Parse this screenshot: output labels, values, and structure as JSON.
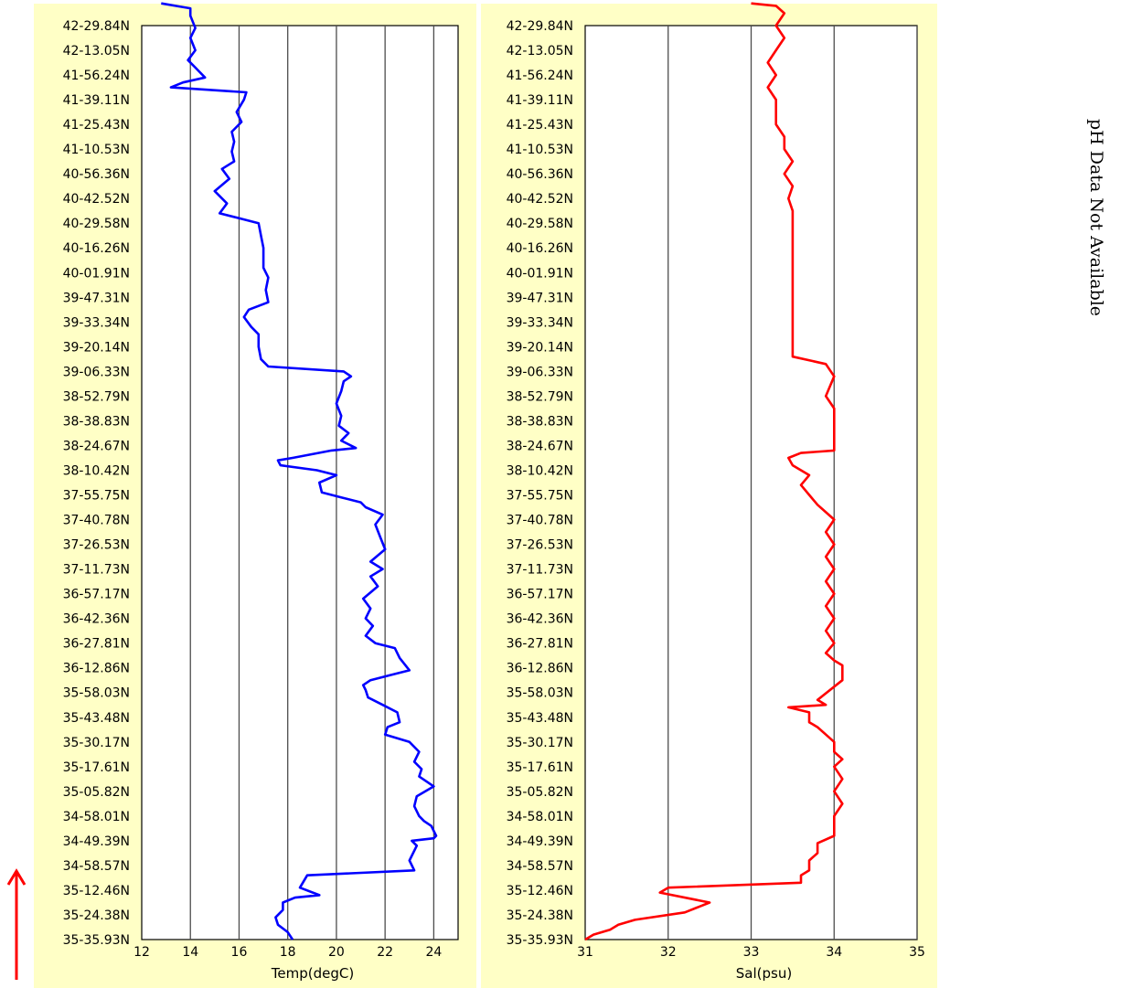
{
  "side_note": "pH Data Not Available",
  "colors": {
    "panel_bg": "#ffffc6",
    "temp_line": "#0000ff",
    "sal_line": "#ff0000",
    "arrow": "#ff0000",
    "grid": "#4d4d4d"
  },
  "direction_arrow_icon": "up-arrow-icon",
  "chart_data": [
    {
      "type": "line",
      "orientation": "vertical-profile",
      "xlabel": "Temp(degC)",
      "ylabel": "",
      "xlim": [
        12,
        25
      ],
      "xticks": [
        "12",
        "14",
        "16",
        "18",
        "20",
        "22",
        "24"
      ],
      "grid": "vertical",
      "categories": [
        "35-35.93N",
        "35-24.38N",
        "35-12.46N",
        "34-58.57N",
        "34-49.39N",
        "34-58.01N",
        "35-05.82N",
        "35-17.61N",
        "35-30.17N",
        "35-43.48N",
        "35-58.03N",
        "36-12.86N",
        "36-27.81N",
        "36-42.36N",
        "36-57.17N",
        "37-11.73N",
        "37-26.53N",
        "37-40.78N",
        "37-55.75N",
        "38-10.42N",
        "38-24.67N",
        "38-38.83N",
        "38-52.79N",
        "39-06.33N",
        "39-20.14N",
        "39-33.34N",
        "39-47.31N",
        "40-01.91N",
        "40-16.26N",
        "40-29.58N",
        "40-42.52N",
        "40-56.36N",
        "41-10.53N",
        "41-25.43N",
        "41-39.11N",
        "41-56.24N",
        "42-13.05N",
        "42-29.84N"
      ],
      "series": [
        {
          "points": [
            [
              18.2,
              0
            ],
            [
              18.0,
              0.3
            ],
            [
              17.6,
              0.6
            ],
            [
              17.5,
              0.9
            ],
            [
              17.8,
              1.2
            ],
            [
              17.8,
              1.5
            ],
            [
              18.3,
              1.7
            ],
            [
              19.3,
              1.8
            ],
            [
              18.5,
              2.1
            ],
            [
              18.8,
              2.6
            ],
            [
              23.2,
              2.8
            ],
            [
              23.0,
              3.2
            ],
            [
              23.3,
              3.8
            ],
            [
              23.1,
              4.0
            ],
            [
              24.0,
              4.1
            ],
            [
              24.1,
              4.2
            ],
            [
              23.9,
              4.6
            ],
            [
              23.6,
              4.8
            ],
            [
              23.4,
              5.0
            ],
            [
              23.2,
              5.4
            ],
            [
              23.3,
              5.8
            ],
            [
              24.0,
              6.2
            ],
            [
              23.4,
              6.6
            ],
            [
              23.5,
              6.9
            ],
            [
              23.2,
              7.2
            ],
            [
              23.4,
              7.6
            ],
            [
              23.0,
              8.0
            ],
            [
              22.0,
              8.3
            ],
            [
              22.1,
              8.6
            ],
            [
              22.6,
              8.8
            ],
            [
              22.5,
              9.2
            ],
            [
              21.9,
              9.5
            ],
            [
              21.3,
              9.8
            ],
            [
              21.2,
              10.1
            ],
            [
              21.1,
              10.3
            ],
            [
              21.4,
              10.5
            ],
            [
              22.2,
              10.7
            ],
            [
              23.0,
              10.9
            ],
            [
              22.6,
              11.4
            ],
            [
              22.4,
              11.8
            ],
            [
              21.6,
              12.0
            ],
            [
              21.2,
              12.3
            ],
            [
              21.5,
              12.7
            ],
            [
              21.2,
              13.0
            ],
            [
              21.4,
              13.4
            ],
            [
              21.1,
              13.8
            ],
            [
              21.7,
              14.3
            ],
            [
              21.4,
              14.7
            ],
            [
              21.9,
              15.0
            ],
            [
              21.4,
              15.3
            ],
            [
              22.0,
              15.8
            ],
            [
              21.8,
              16.3
            ],
            [
              21.6,
              16.8
            ],
            [
              21.9,
              17.2
            ],
            [
              21.2,
              17.5
            ],
            [
              21.0,
              17.7
            ],
            [
              20.2,
              17.9
            ],
            [
              19.4,
              18.1
            ],
            [
              19.3,
              18.5
            ],
            [
              20.0,
              18.8
            ],
            [
              19.2,
              19.0
            ],
            [
              17.7,
              19.2
            ],
            [
              17.6,
              19.4
            ],
            [
              18.2,
              19.5
            ],
            [
              19.8,
              19.8
            ],
            [
              20.8,
              19.9
            ],
            [
              20.2,
              20.2
            ],
            [
              20.5,
              20.5
            ],
            [
              20.1,
              20.8
            ],
            [
              20.2,
              21.2
            ],
            [
              20.0,
              21.7
            ],
            [
              20.2,
              22.2
            ],
            [
              20.3,
              22.6
            ],
            [
              20.6,
              22.8
            ],
            [
              20.3,
              23.0
            ],
            [
              17.2,
              23.2
            ],
            [
              16.9,
              23.5
            ],
            [
              16.8,
              24.0
            ],
            [
              16.8,
              24.5
            ],
            [
              16.5,
              24.8
            ],
            [
              16.2,
              25.2
            ],
            [
              16.4,
              25.5
            ],
            [
              17.2,
              25.8
            ],
            [
              17.1,
              26.3
            ],
            [
              17.2,
              26.8
            ],
            [
              17.0,
              27.2
            ],
            [
              17.0,
              28.0
            ],
            [
              16.9,
              28.5
            ],
            [
              16.8,
              29.0
            ],
            [
              16.0,
              29.2
            ],
            [
              15.2,
              29.4
            ],
            [
              15.5,
              29.8
            ],
            [
              15.0,
              30.3
            ],
            [
              15.6,
              30.8
            ],
            [
              15.3,
              31.2
            ],
            [
              15.8,
              31.5
            ],
            [
              15.7,
              31.9
            ],
            [
              15.8,
              32.3
            ],
            [
              15.7,
              32.7
            ],
            [
              16.1,
              33.1
            ],
            [
              15.9,
              33.5
            ],
            [
              16.2,
              34.0
            ],
            [
              16.3,
              34.3
            ],
            [
              13.2,
              34.5
            ],
            [
              13.7,
              34.7
            ],
            [
              14.6,
              34.9
            ],
            [
              14.2,
              35.3
            ],
            [
              13.9,
              35.6
            ],
            [
              14.2,
              36.0
            ],
            [
              14.0,
              36.5
            ],
            [
              14.2,
              36.9
            ],
            [
              14.0,
              37.4
            ],
            [
              14.0,
              37.7
            ],
            [
              12.8,
              37.9
            ]
          ]
        }
      ]
    },
    {
      "type": "line",
      "orientation": "vertical-profile",
      "xlabel": "Sal(psu)",
      "ylabel": "",
      "xlim": [
        31,
        35
      ],
      "xticks": [
        "31",
        "32",
        "33",
        "34",
        "35"
      ],
      "grid": "vertical",
      "categories": [
        "35-35.93N",
        "35-24.38N",
        "35-12.46N",
        "34-58.57N",
        "34-49.39N",
        "34-58.01N",
        "35-05.82N",
        "35-17.61N",
        "35-30.17N",
        "35-43.48N",
        "35-58.03N",
        "36-12.86N",
        "36-27.81N",
        "36-42.36N",
        "36-57.17N",
        "37-11.73N",
        "37-26.53N",
        "37-40.78N",
        "37-55.75N",
        "38-10.42N",
        "38-24.67N",
        "38-38.83N",
        "38-52.79N",
        "39-06.33N",
        "39-20.14N",
        "39-33.34N",
        "39-47.31N",
        "40-01.91N",
        "40-16.26N",
        "40-29.58N",
        "40-42.52N",
        "40-56.36N",
        "41-10.53N",
        "41-25.43N",
        "41-39.11N",
        "41-56.24N",
        "42-13.05N",
        "42-29.84N"
      ],
      "series": [
        {
          "points": [
            [
              31.0,
              0.0
            ],
            [
              31.1,
              0.2
            ],
            [
              31.3,
              0.4
            ],
            [
              31.4,
              0.6
            ],
            [
              31.6,
              0.8
            ],
            [
              32.2,
              1.1
            ],
            [
              32.5,
              1.5
            ],
            [
              31.9,
              1.9
            ],
            [
              32.0,
              2.1
            ],
            [
              33.6,
              2.3
            ],
            [
              33.6,
              2.6
            ],
            [
              33.7,
              2.8
            ],
            [
              33.7,
              3.2
            ],
            [
              33.8,
              3.5
            ],
            [
              33.8,
              3.9
            ],
            [
              34.0,
              4.2
            ],
            [
              34.0,
              4.5
            ],
            [
              34.0,
              5.0
            ],
            [
              34.1,
              5.5
            ],
            [
              34.0,
              6.0
            ],
            [
              34.1,
              6.5
            ],
            [
              34.0,
              7.0
            ],
            [
              34.1,
              7.3
            ],
            [
              34.0,
              7.6
            ],
            [
              34.0,
              8.0
            ],
            [
              33.9,
              8.3
            ],
            [
              33.8,
              8.6
            ],
            [
              33.7,
              8.8
            ],
            [
              33.7,
              9.2
            ],
            [
              33.45,
              9.4
            ],
            [
              33.9,
              9.5
            ],
            [
              33.8,
              9.7
            ],
            [
              34.1,
              10.5
            ],
            [
              34.1,
              11.1
            ],
            [
              34.0,
              11.3
            ],
            [
              33.9,
              11.6
            ],
            [
              34.0,
              12.0
            ],
            [
              33.9,
              12.5
            ],
            [
              34.0,
              13.0
            ],
            [
              33.9,
              13.5
            ],
            [
              34.0,
              14.0
            ],
            [
              33.9,
              14.5
            ],
            [
              34.0,
              15.0
            ],
            [
              33.9,
              15.5
            ],
            [
              34.0,
              16.0
            ],
            [
              33.9,
              16.5
            ],
            [
              34.0,
              17.0
            ],
            [
              33.9,
              17.3
            ],
            [
              33.8,
              17.6
            ],
            [
              33.7,
              18.0
            ],
            [
              33.6,
              18.4
            ],
            [
              33.7,
              18.8
            ],
            [
              33.5,
              19.2
            ],
            [
              33.45,
              19.5
            ],
            [
              33.6,
              19.7
            ],
            [
              34.0,
              19.8
            ],
            [
              34.0,
              20.5
            ],
            [
              34.0,
              21.5
            ],
            [
              33.9,
              22.0
            ],
            [
              34.0,
              22.8
            ],
            [
              33.9,
              23.3
            ],
            [
              33.5,
              23.6
            ],
            [
              33.5,
              24.5
            ],
            [
              33.5,
              25.5
            ],
            [
              33.5,
              26.5
            ],
            [
              33.5,
              27.5
            ],
            [
              33.5,
              28.5
            ],
            [
              33.5,
              29.5
            ],
            [
              33.45,
              30.0
            ],
            [
              33.5,
              30.5
            ],
            [
              33.4,
              31.0
            ],
            [
              33.5,
              31.5
            ],
            [
              33.4,
              32.0
            ],
            [
              33.4,
              32.5
            ],
            [
              33.3,
              33.0
            ],
            [
              33.3,
              33.5
            ],
            [
              33.3,
              34.0
            ],
            [
              33.2,
              34.5
            ],
            [
              33.3,
              35.0
            ],
            [
              33.2,
              35.5
            ],
            [
              33.3,
              36.0
            ],
            [
              33.4,
              36.5
            ],
            [
              33.3,
              37.0
            ],
            [
              33.4,
              37.5
            ],
            [
              33.3,
              37.8
            ],
            [
              33.0,
              37.9
            ]
          ]
        }
      ]
    }
  ]
}
